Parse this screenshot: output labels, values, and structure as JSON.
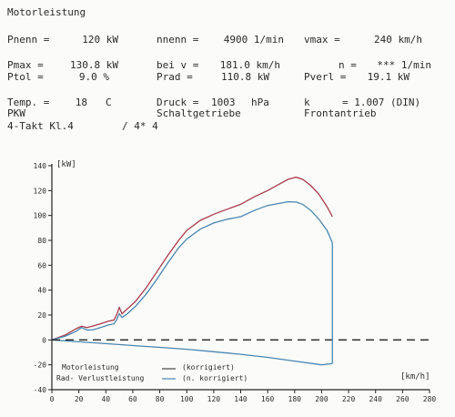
{
  "header": {
    "title": "Motorleistung",
    "pnenn_label": "Pnenn =",
    "pnenn_value": "120 kW",
    "nnenn_label": "nnenn =",
    "nnenn_value": "4900 1/min",
    "vmax_label": "vmax =",
    "vmax_value": "240 km/h",
    "pmax_label": "Pmax =",
    "pmax_value": "130.8 kW",
    "beiv_label": "bei v =",
    "beiv_value": "181.0 km/h",
    "n_label": "n =",
    "n_value": "*** 1/min",
    "ptol_label": "Ptol =",
    "ptol_value": "9.0 %",
    "prad_label": "Prad =",
    "prad_value": "110.8 kW",
    "pverl_label": "Pverl =",
    "pverl_value": "19.1 kW",
    "temp_label": "Temp. =",
    "temp_value": "18",
    "temp_unit": "C",
    "druck_label": "Druck =",
    "druck_value": "1003",
    "druck_unit": "hPa",
    "k_label": "k",
    "k_value": "= 1.007 (DIN)",
    "pkw": "PKW",
    "getriebe": "Schaltgetriebe",
    "antrieb": "Frontantrieb",
    "takt": "4-Takt Kl.4",
    "code": "/ 4* 4"
  },
  "chart_data": {
    "type": "line",
    "title": "",
    "xlabel": "[km/h]",
    "ylabel": "[kW]",
    "xlim": [
      0,
      280
    ],
    "ylim": [
      -40,
      140
    ],
    "xticks": [
      0,
      20,
      40,
      60,
      80,
      100,
      120,
      140,
      160,
      180,
      200,
      220,
      240,
      260,
      280
    ],
    "yticks": [
      -40,
      -20,
      0,
      20,
      40,
      60,
      80,
      100,
      120,
      140
    ],
    "grid": false,
    "legend": {
      "position": "bottom-left",
      "line1": "Motorleistung",
      "line1_note": "(korrigiert)",
      "line2": "Rad- Verlustleistung",
      "line2_note": "(n. korrigiert)"
    },
    "series": [
      {
        "name": "Motorleistung",
        "color": "#a83a4a",
        "x": [
          0,
          10,
          18,
          22,
          26,
          30,
          36,
          42,
          46,
          48,
          50,
          52,
          56,
          62,
          70,
          78,
          86,
          94,
          100,
          110,
          120,
          130,
          140,
          150,
          160,
          170,
          175,
          181,
          186,
          192,
          198,
          204,
          208
        ],
        "y": [
          0,
          4,
          9,
          11,
          10,
          11,
          13,
          15,
          16,
          20,
          26,
          21,
          25,
          31,
          42,
          55,
          68,
          80,
          88,
          96,
          101,
          105,
          109,
          115,
          120,
          126,
          129,
          130.8,
          129,
          124,
          117,
          107,
          99
        ]
      },
      {
        "name": "Rad-Leistung",
        "color": "#4a86b0",
        "x": [
          0,
          10,
          18,
          22,
          26,
          30,
          36,
          42,
          46,
          48,
          50,
          52,
          56,
          62,
          70,
          78,
          86,
          94,
          100,
          110,
          120,
          130,
          140,
          150,
          160,
          170,
          175,
          181,
          186,
          192,
          198,
          204,
          208
        ],
        "y": [
          0,
          3,
          7,
          10,
          8,
          8,
          10,
          12,
          13,
          16,
          21,
          18,
          21,
          27,
          37,
          49,
          62,
          74,
          81,
          89,
          94,
          97,
          99,
          104,
          108,
          110,
          111,
          110.8,
          109,
          104,
          97,
          88,
          78
        ]
      },
      {
        "name": "Verlustleistung",
        "color": "#4a86b0",
        "x": [
          0,
          20,
          40,
          60,
          80,
          100,
          120,
          140,
          160,
          180,
          200,
          208
        ],
        "y": [
          0,
          -1.5,
          -3,
          -4.5,
          -6,
          -7.5,
          -9.5,
          -11.5,
          -14,
          -17,
          -20,
          -19.1
        ]
      },
      {
        "name": "Nulllinie",
        "color": "#222222",
        "x": [
          0,
          280
        ],
        "y": [
          0,
          0
        ]
      }
    ]
  }
}
